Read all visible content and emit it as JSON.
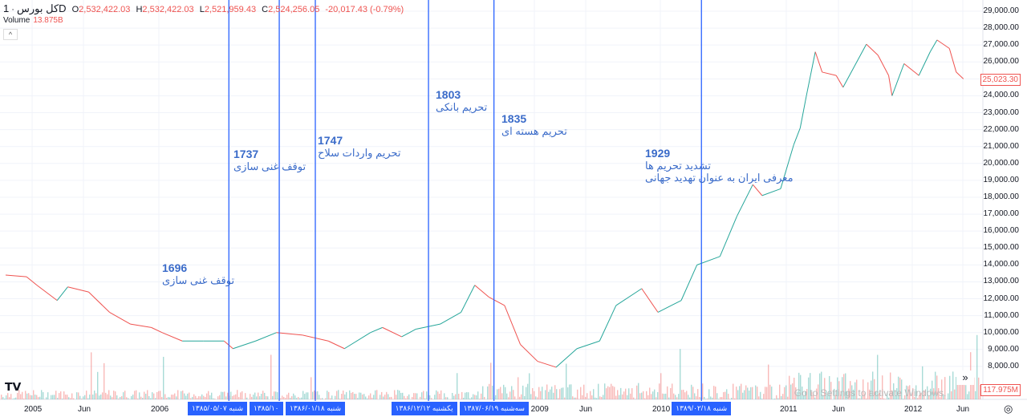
{
  "header": {
    "symbol": "کل بورس",
    "interval": "1D",
    "o_label": "O",
    "open": "2,532,422.03",
    "h_label": "H",
    "high": "2,532,422.03",
    "l_label": "L",
    "low": "2,521,959.43",
    "c_label": "C",
    "close": "2,524,256.05",
    "change": "-20,017.43 (-0.79%)"
  },
  "volume": {
    "label": "Volume",
    "value": "13.875B",
    "axis_pill": "117.975M"
  },
  "collapse_icon": "chevron-up-icon",
  "price_pill": "25,023.30",
  "colors": {
    "up": "#26a69a",
    "down": "#ef5350",
    "marker": "#2962ff",
    "annotation": "#3a6bc9"
  },
  "chart_data": {
    "type": "line",
    "yaxis": {
      "ticks": [
        "29,000.00",
        "28,000.00",
        "27,000.00",
        "26,000.00",
        "24,000.00",
        "23,000.00",
        "22,000.00",
        "21,000.00",
        "20,000.00",
        "19,000.00",
        "18,000.00",
        "17,000.00",
        "16,000.00",
        "15,000.00",
        "14,000.00",
        "13,000.00",
        "12,000.00",
        "11,000.00",
        "10,000.00",
        "9,000.00",
        "8,000.00"
      ],
      "range": [
        7000,
        29000
      ]
    },
    "xaxis": {
      "ticks": [
        "2005",
        "Jun",
        "2006",
        "2009",
        "Jun",
        "2010",
        "2011",
        "Jun",
        "2012",
        "Jun"
      ]
    },
    "grid": true,
    "points": [
      [
        "2004-10-15",
        13400
      ],
      [
        "2004-12-15",
        13300
      ],
      [
        "2005-01-15",
        12800
      ],
      [
        "2005-03-15",
        11900
      ],
      [
        "2005-04-15",
        12700
      ],
      [
        "2005-06-15",
        12400
      ],
      [
        "2005-08-15",
        11200
      ],
      [
        "2005-10-15",
        10500
      ],
      [
        "2005-12-15",
        10300
      ],
      [
        "2006-01-15",
        10000
      ],
      [
        "2006-03-15",
        9500
      ],
      [
        "2006-05-15",
        9500
      ],
      [
        "2006-07-15",
        9500
      ],
      [
        "2006-08-10",
        9050
      ],
      [
        "2006-10-15",
        9500
      ],
      [
        "2006-12-15",
        10000
      ],
      [
        "2007-03-01",
        9850
      ],
      [
        "2007-05-15",
        9500
      ],
      [
        "2007-07-01",
        9050
      ],
      [
        "2007-09-15",
        10000
      ],
      [
        "2007-10-20",
        10300
      ],
      [
        "2007-12-15",
        9750
      ],
      [
        "2008-01-25",
        10200
      ],
      [
        "2008-04-05",
        10500
      ],
      [
        "2008-06-05",
        11200
      ],
      [
        "2008-07-15",
        12800
      ],
      [
        "2008-08-25",
        12100
      ],
      [
        "2008-10-10",
        11600
      ],
      [
        "2008-11-25",
        9300
      ],
      [
        "2009-01-15",
        8300
      ],
      [
        "2009-03-10",
        7950
      ],
      [
        "2009-05-10",
        9050
      ],
      [
        "2009-07-15",
        9500
      ],
      [
        "2009-09-01",
        11600
      ],
      [
        "2009-11-15",
        12600
      ],
      [
        "2010-01-01",
        11200
      ],
      [
        "2010-03-10",
        11900
      ],
      [
        "2010-04-25",
        14000
      ],
      [
        "2010-07-01",
        14500
      ],
      [
        "2010-08-20",
        16900
      ],
      [
        "2010-10-05",
        18750
      ],
      [
        "2010-11-01",
        18100
      ],
      [
        "2010-12-25",
        18500
      ],
      [
        "2011-02-01",
        21100
      ],
      [
        "2011-02-20",
        22100
      ],
      [
        "2011-03-10",
        24000
      ],
      [
        "2011-04-05",
        26600
      ],
      [
        "2011-04-25",
        25400
      ],
      [
        "2011-06-05",
        25200
      ],
      [
        "2011-06-25",
        24500
      ],
      [
        "2011-09-01",
        27050
      ],
      [
        "2011-10-05",
        26400
      ],
      [
        "2011-11-05",
        25200
      ],
      [
        "2011-11-15",
        24000
      ],
      [
        "2011-12-20",
        25900
      ],
      [
        "2012-02-01",
        25200
      ],
      [
        "2012-03-05",
        26600
      ],
      [
        "2012-03-25",
        27300
      ],
      [
        "2012-04-30",
        26800
      ],
      [
        "2012-05-20",
        25400
      ],
      [
        "2012-06-10",
        25000
      ]
    ],
    "markers": [
      {
        "date": "2006-07-29",
        "label": "شنبه ۱۳۸۵/۰۵/۰۷"
      },
      {
        "date": "2006-12-23",
        "label": "۱۳۸۵/۱۰"
      },
      {
        "date": "2007-04-07",
        "label": "شنبه ۱۳۸۶/۰۱/۱۸"
      },
      {
        "date": "2008-03-02",
        "label": "یکشنبه ۱۳۸۶/۱۲/۱۲"
      },
      {
        "date": "2008-09-09",
        "label": "سه‌شنبه ۱۳۸۷/۰۶/۱۹"
      },
      {
        "date": "2010-05-08",
        "label": "شنبه ۱۳۸۹/۰۲/۱۸"
      }
    ],
    "annotations": [
      {
        "num": "1696",
        "text": "توقف غنی سازی"
      },
      {
        "num": "1737",
        "text": "توقف غنی سازی"
      },
      {
        "num": "1747",
        "text": "تحریم واردات سلاح"
      },
      {
        "num": "1803",
        "text": "تحریم بانکی"
      },
      {
        "num": "1835",
        "text": "تحریم هسته ای"
      },
      {
        "num": "1929",
        "text": "تشدید تحریم ها",
        "text2": "معرفی ایران به عنوان تهدید جهانی"
      }
    ]
  },
  "watermark": "Go to Settings to activate Windows.",
  "more_button": "»",
  "logo": "TV"
}
